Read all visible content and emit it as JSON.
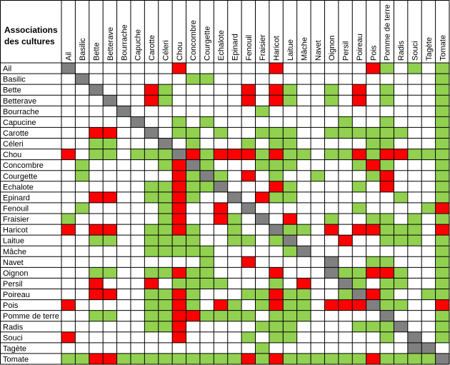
{
  "title_lines": [
    "Associations",
    "des cultures"
  ],
  "colors": {
    "good": "#92d050",
    "bad": "#ff0000",
    "self": "#808080",
    "neutral": "#ffffff",
    "grid": "#000000"
  },
  "chart_data": {
    "type": "heatmap",
    "title": "Associations des cultures",
    "legend": {
      "G": "good",
      "R": "bad",
      "X": "self",
      ".": "neutral"
    },
    "columns": [
      "Ail",
      "Basilic",
      "Bette",
      "Betterave",
      "Bourrache",
      "Capuche",
      "Carotte",
      "Céleri",
      "Chou",
      "Concombre",
      "Courgette",
      "Echalote",
      "Epinard",
      "Fenouil",
      "Fraisier",
      "Haricot",
      "Laitue",
      "Mâche",
      "Navet",
      "Oignon",
      "Persil",
      "Poireau",
      "Pois",
      "Pomme de terre",
      "Radis",
      "Souci",
      "Tagète",
      "Tomate"
    ],
    "rows": [
      "Ail",
      "Basilic",
      "Bette",
      "Betterave",
      "Bourrache",
      "Capucine",
      "Carotte",
      "Céleri",
      "Chou",
      "Concombre",
      "Courgette",
      "Echalote",
      "Epinard",
      "Fenouil",
      "Fraisier",
      "Haricot",
      "Laitue",
      "Mâche",
      "Navet",
      "Oignon",
      "Persil",
      "Poireau",
      "Pois",
      "Pomme de terre",
      "Radis",
      "Souci",
      "Tagète",
      "Tomate"
    ],
    "cells": [
      "X.......R......R......RG.G.G",
      ".X.......GG................G",
      "..X...RG.....R.RG..G.R.G...G",
      "...X..RG.....R.RG..G.R.G...G",
      "....X.........G............G",
      ".....X..G.G.........G..G...G",
      "..RR..X.GG.G..GGG..GGGGGG..G",
      "..GG...X.G...G.GG.....GG...G",
      "R.GG.GGGXRGRRRGRGG.GGRGRRGGG",
      ".G.....GRXG...GGG....GRG...G",
      ".G......RGXG.R.G..G...GR...G",
      "......GGRGGX...RG....G.R...G",
      "..RR..GGRG..X.RGG.......G..G",
      ".G.....GR..R.X.......G....GR",
      "G......GR..RG.X.R..G..GG.G.G",
      "R.RR..GGRG..G..XGG.R.RRGGG.R",
      "..GG..GGGG..GG.GX...R..GGG.G",
      "......GGGGG.....GX.........G",
      "..........G..R.....X..GG...G",
      "..GG..GGRGG....R...XGGRRG..G",
      "..R...R.GGGG...G.R..XG.GG..G",
      "..RR..GGRG...GGRGG..GXRG..GG",
      "R.....GGRG.RG.GRGG.RRRXGG..R",
      "..GG..GGRRGGGG.GGG.....X...G",
      "......GGR.....GGG....GGGX..G",
      "R.......R....G.GG......G.X.G",
      "..............G..........XX.",
      "GGRRGGGGGGGGGRGRGGGGGGRGGGGX"
    ]
  }
}
